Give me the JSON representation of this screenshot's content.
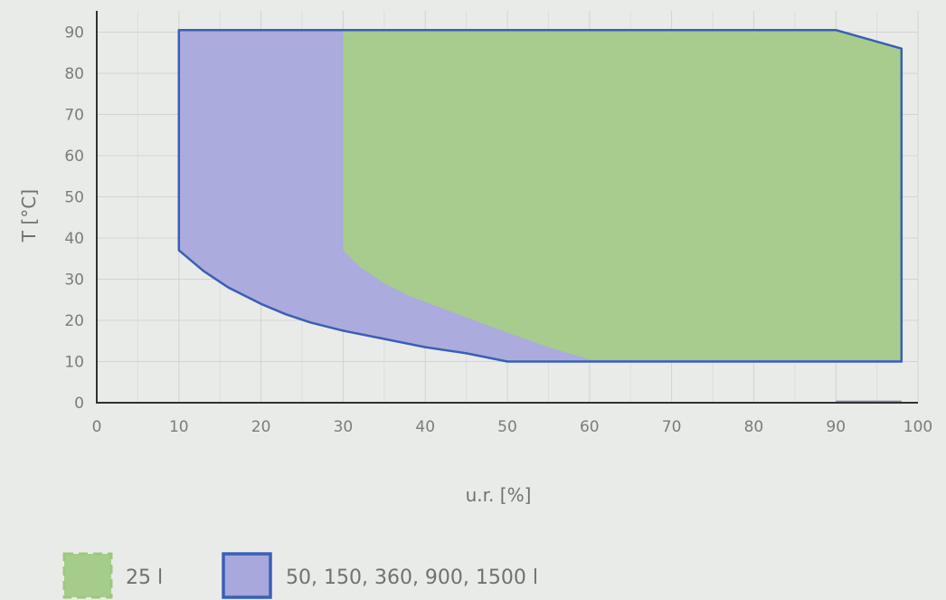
{
  "chart_data": {
    "type": "area",
    "xlabel": "u.r. [%]",
    "ylabel": "T  [°C]",
    "xlim": [
      0,
      100
    ],
    "ylim": [
      0,
      95
    ],
    "x_ticks": [
      0,
      10,
      20,
      30,
      40,
      50,
      60,
      70,
      80,
      90,
      100
    ],
    "y_ticks": [
      0,
      10,
      20,
      30,
      40,
      50,
      60,
      70,
      80,
      90
    ],
    "grid": true,
    "legend_position": "bottom-left",
    "series": [
      {
        "name": "50, 150, 360, 900, 1500 l",
        "color": "#a8a8dc",
        "edge_color": "#3a5fb5",
        "edge_style": "solid",
        "points": [
          [
            10,
            37
          ],
          [
            13,
            32
          ],
          [
            16,
            28
          ],
          [
            20,
            24
          ],
          [
            23,
            21.5
          ],
          [
            26,
            19.5
          ],
          [
            30,
            17.5
          ],
          [
            35,
            15.5
          ],
          [
            40,
            13.5
          ],
          [
            45,
            12
          ],
          [
            50,
            10
          ],
          [
            98,
            10
          ],
          [
            98,
            86
          ],
          [
            90,
            90.5
          ],
          [
            10,
            90.5
          ]
        ]
      },
      {
        "name": "25 l",
        "color": "#a6cc8c",
        "edge_color": "#9cc97a",
        "edge_style": "dashed",
        "points": [
          [
            30,
            37
          ],
          [
            32,
            33
          ],
          [
            35,
            29
          ],
          [
            38,
            26
          ],
          [
            42,
            23
          ],
          [
            46,
            20
          ],
          [
            50,
            17
          ],
          [
            55,
            13.5
          ],
          [
            60,
            10.5
          ],
          [
            98,
            10.5
          ],
          [
            98,
            86
          ],
          [
            90,
            90.5
          ],
          [
            30,
            90.5
          ]
        ]
      }
    ],
    "extra_line": {
      "color": "#8a8fa8",
      "points": [
        [
          90,
          0.3
        ],
        [
          98,
          0.3
        ]
      ]
    }
  }
}
